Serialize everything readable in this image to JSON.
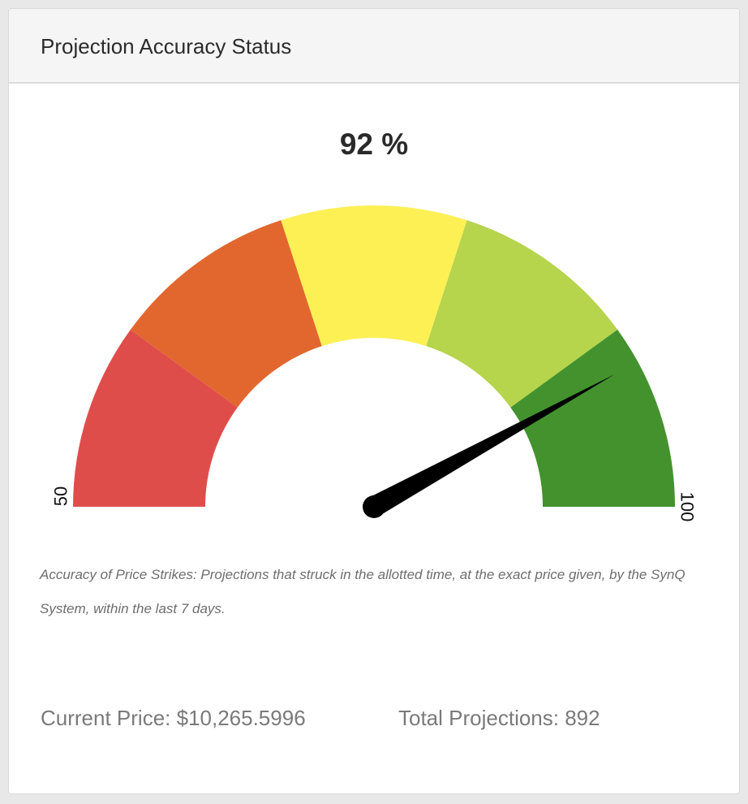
{
  "panel": {
    "title": "Projection Accuracy Status"
  },
  "gauge": {
    "value": 92,
    "value_label": "92 %",
    "min": 50,
    "max": 100,
    "min_label": "50",
    "max_label": "100",
    "bands": [
      {
        "from": 50,
        "to": 60,
        "color": "#df4d4b"
      },
      {
        "from": 60,
        "to": 70,
        "color": "#e2672f"
      },
      {
        "from": 70,
        "to": 80,
        "color": "#fdf054"
      },
      {
        "from": 80,
        "to": 90,
        "color": "#b6d44c"
      },
      {
        "from": 90,
        "to": 100,
        "color": "#43922e"
      }
    ],
    "needle_color": "#000000"
  },
  "description": "Accuracy of Price Strikes: Projections that struck in the allotted time, at the exact price given, by the SynQ System, within the last 7 days.",
  "stats": {
    "current_price": "Current Price: $10,265.5996",
    "total_projections": "Total Projections: 892"
  }
}
